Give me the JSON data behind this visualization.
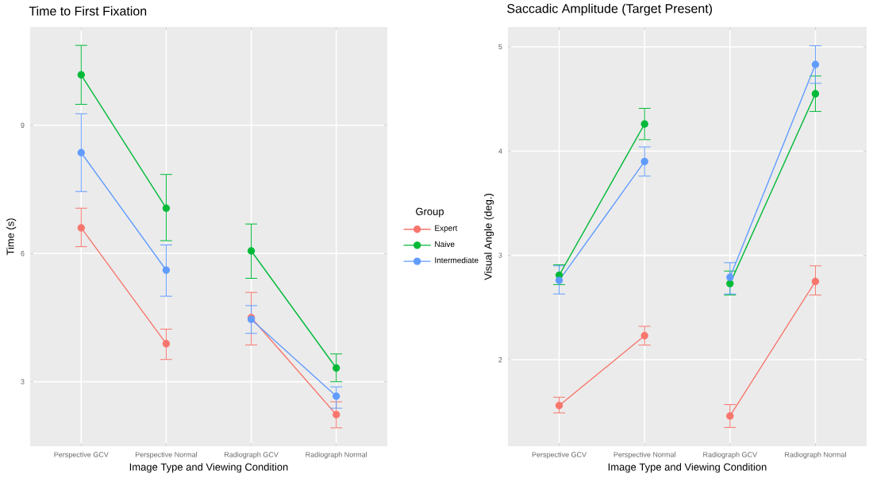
{
  "chart_data": [
    {
      "type": "line",
      "title": "Time to First Fixation",
      "xlabel": "Image Type and Viewing Condition",
      "ylabel": "Time (s)",
      "categories": [
        "Perspective GCV",
        "Perspective Normal",
        "Radiograph GCV",
        "Radiograph Normal"
      ],
      "ylim": [
        1.49,
        11.3
      ],
      "yticks": [
        3,
        6,
        9
      ],
      "grid": true,
      "marker": "circle",
      "legend": "right",
      "legend_title": "Group",
      "series": [
        {
          "name": "Expert",
          "color": "#F8766D",
          "values": [
            6.6,
            3.89,
            null,
            null
          ],
          "errors": [
            [
              6.16,
              7.06
            ],
            [
              3.52,
              4.23
            ],
            null,
            null
          ]
        },
        {
          "name": "Naive",
          "color": "#00BA38",
          "values": [
            10.18,
            7.06,
            null,
            null
          ],
          "errors": [
            [
              9.49,
              10.87
            ],
            [
              6.3,
              7.85
            ],
            null,
            null
          ]
        },
        {
          "name": "Intermediate",
          "color": "#619CFF",
          "values": [
            8.36,
            5.61,
            null,
            null
          ],
          "errors": [
            [
              7.45,
              9.27
            ],
            [
              5.0,
              6.2
            ],
            null,
            null
          ]
        },
        {
          "color": "#F8766D",
          "values": [
            null,
            null,
            4.5,
            2.23
          ],
          "errors": [
            null,
            null,
            [
              3.86,
              5.09
            ],
            [
              1.92,
              2.53
            ]
          ]
        },
        {
          "color": "#00BA38",
          "values": [
            null,
            null,
            6.06,
            3.32
          ],
          "errors": [
            null,
            null,
            [
              5.42,
              6.69
            ],
            [
              3.0,
              3.65
            ]
          ]
        },
        {
          "color": "#619CFF",
          "values": [
            null,
            null,
            4.46,
            2.66
          ],
          "errors": [
            null,
            null,
            [
              4.13,
              4.78
            ],
            [
              2.38,
              2.88
            ]
          ]
        }
      ]
    },
    {
      "type": "line",
      "title": "Saccadic Amplitude (Target Present)",
      "xlabel": "Image Type and Viewing Condition",
      "ylabel": "Visual Angle (deg.)",
      "categories": [
        "Perspective GCV",
        "Perspective Normal",
        "Radiograph GCV",
        "Radiograph Normal"
      ],
      "ylim": [
        1.17,
        5.19
      ],
      "yticks": [
        2,
        3,
        4,
        5
      ],
      "grid": true,
      "marker": "circle",
      "series": [
        {
          "color": "#F8766D",
          "values": [
            1.56,
            2.23,
            null,
            null
          ],
          "errors": [
            [
              1.49,
              1.64
            ],
            [
              2.14,
              2.32
            ],
            null,
            null
          ]
        },
        {
          "color": "#00BA38",
          "values": [
            2.81,
            4.26,
            null,
            null
          ],
          "errors": [
            [
              2.72,
              2.91
            ],
            [
              4.11,
              4.41
            ],
            null,
            null
          ]
        },
        {
          "color": "#619CFF",
          "values": [
            2.76,
            3.9,
            null,
            null
          ],
          "errors": [
            [
              2.63,
              2.9
            ],
            [
              3.76,
              4.04
            ],
            null,
            null
          ]
        },
        {
          "color": "#F8766D",
          "values": [
            null,
            null,
            1.46,
            2.75
          ],
          "errors": [
            null,
            null,
            [
              1.35,
              1.57
            ],
            [
              2.62,
              2.9
            ]
          ]
        },
        {
          "color": "#00BA38",
          "values": [
            null,
            null,
            2.73,
            4.55
          ],
          "errors": [
            null,
            null,
            [
              2.62,
              2.85
            ],
            [
              4.38,
              4.72
            ]
          ]
        },
        {
          "color": "#619CFF",
          "values": [
            null,
            null,
            2.79,
            4.83
          ],
          "errors": [
            null,
            null,
            [
              2.63,
              2.93
            ],
            [
              4.65,
              5.01
            ]
          ]
        }
      ]
    }
  ]
}
